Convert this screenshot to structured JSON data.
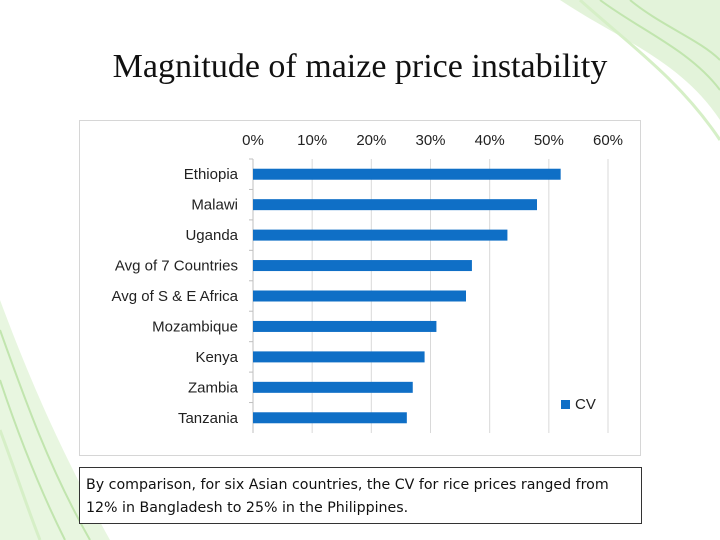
{
  "slide": {
    "title": "Magnitude of maize price instability",
    "caption": "By comparison, for six Asian countries, the CV for rice prices ranged from 12% in Bangladesh to 25% in the Philippines."
  },
  "colors": {
    "bar": "#0f6fc6",
    "grid": "#d9d9d9",
    "decor": "#a6d88a"
  },
  "chart_data": {
    "type": "bar",
    "orientation": "horizontal",
    "title": "",
    "xlabel": "",
    "ylabel": "",
    "axis_position": "top",
    "xlim": [
      0,
      60
    ],
    "x_ticks": [
      0,
      10,
      20,
      30,
      40,
      50,
      60
    ],
    "x_tick_labels": [
      "0%",
      "10%",
      "20%",
      "30%",
      "40%",
      "50%",
      "60%"
    ],
    "grid": true,
    "legend": "right",
    "categories": [
      "Ethiopia",
      "Malawi",
      "Uganda",
      "Avg of 7 Countries",
      "Avg of S & E Africa",
      "Mozambique",
      "Kenya",
      "Zambia",
      "Tanzania"
    ],
    "series": [
      {
        "name": "CV",
        "values": [
          52,
          48,
          43,
          37,
          36,
          31,
          29,
          27,
          26
        ]
      }
    ]
  }
}
